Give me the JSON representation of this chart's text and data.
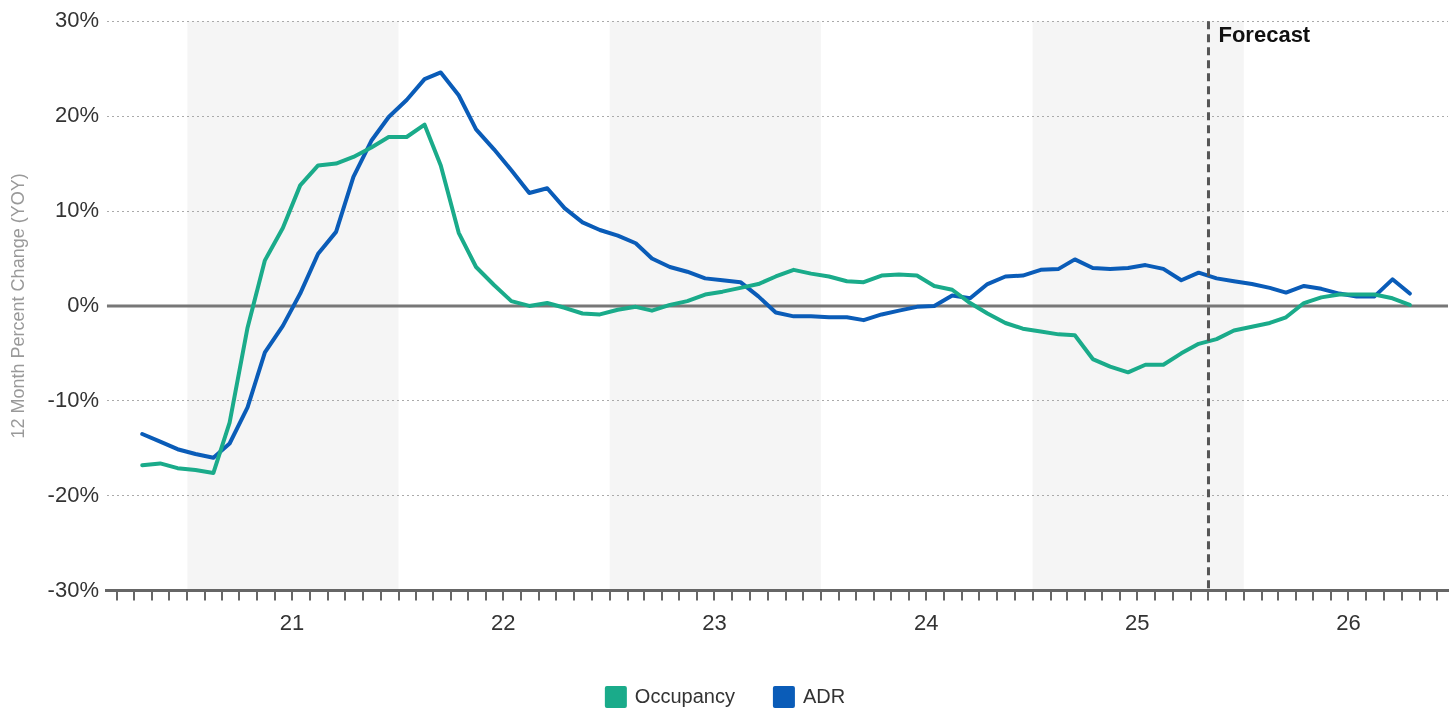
{
  "chart_data": {
    "type": "line",
    "ylabel": "12 Month Percent Change (YOY)",
    "x": [
      "2020-10-15",
      "2020-11-15",
      "2020-12-15",
      "2021-01-15",
      "2021-02-15",
      "2021-03-15",
      "2021-04-15",
      "2021-05-15",
      "2021-06-15",
      "2021-07-15",
      "2021-08-15",
      "2021-09-15",
      "2021-10-15",
      "2021-11-15",
      "2021-12-15",
      "2022-01-15",
      "2022-02-15",
      "2022-03-15",
      "2022-04-15",
      "2022-05-15",
      "2022-06-15",
      "2022-07-15",
      "2022-08-15",
      "2022-09-15",
      "2022-10-15",
      "2022-11-15",
      "2022-12-15",
      "2023-01-15",
      "2023-02-15",
      "2023-03-15",
      "2023-04-15",
      "2023-05-15",
      "2023-06-15",
      "2023-07-15",
      "2023-08-15",
      "2023-09-15",
      "2023-10-15",
      "2023-11-15",
      "2023-12-15",
      "2024-01-15",
      "2024-02-15",
      "2024-03-15",
      "2024-04-15",
      "2024-05-15",
      "2024-06-15",
      "2024-07-15",
      "2024-08-15",
      "2024-09-15",
      "2024-10-15",
      "2024-11-15",
      "2024-12-15",
      "2025-01-15",
      "2025-02-15",
      "2025-03-15",
      "2025-04-15",
      "2025-05-15",
      "2025-06-15",
      "2025-07-15",
      "2025-08-15",
      "2025-09-15",
      "2025-10-15",
      "2025-11-15",
      "2025-12-15",
      "2026-01-15",
      "2026-02-15",
      "2026-03-15",
      "2026-04-15",
      "2026-05-15",
      "2026-06-15",
      "2026-07-15",
      "2026-08-15",
      "2026-09-15",
      "2026-10-15"
    ],
    "series": [
      {
        "name": "Occupancy",
        "color": "#1aab8a",
        "values": [
          -16.8,
          -16.6,
          -17.1,
          -17.3,
          -17.6,
          -12.3,
          -2.3,
          4.8,
          8.2,
          12.7,
          14.8,
          15.0,
          15.7,
          16.7,
          17.8,
          17.8,
          19.1,
          14.8,
          7.7,
          4.1,
          2.2,
          0.5,
          0.0,
          0.3,
          -0.2,
          -0.8,
          -0.9,
          -0.4,
          -0.1,
          -0.5,
          0.1,
          0.5,
          1.2,
          1.5,
          1.9,
          2.3,
          3.1,
          3.8,
          3.4,
          3.1,
          2.6,
          2.5,
          3.2,
          3.3,
          3.2,
          2.1,
          1.7,
          0.3,
          -0.8,
          -1.8,
          -2.4,
          -2.7,
          -3.0,
          -3.1,
          -5.6,
          -6.4,
          -7.0,
          -6.2,
          -6.2,
          -5.0,
          -4.0,
          -3.5,
          -2.6,
          -2.2,
          -1.8,
          -1.2,
          0.3,
          0.9,
          1.2,
          1.2,
          1.2,
          0.8,
          0.1
        ]
      },
      {
        "name": "ADR",
        "color": "#0a5cb8",
        "values": [
          -13.5,
          -14.3,
          -15.1,
          -15.6,
          -16.0,
          -14.5,
          -10.7,
          -4.9,
          -2.1,
          1.3,
          5.5,
          7.8,
          13.6,
          17.4,
          19.9,
          21.7,
          23.9,
          24.6,
          22.2,
          18.6,
          16.5,
          14.3,
          11.9,
          12.4,
          10.3,
          8.8,
          8.0,
          7.4,
          6.6,
          5.0,
          4.1,
          3.6,
          2.9,
          2.7,
          2.5,
          1.0,
          -0.7,
          -1.1,
          -1.1,
          -1.2,
          -1.2,
          -1.5,
          -0.9,
          -0.5,
          -0.1,
          0.0,
          1.1,
          0.8,
          2.3,
          3.1,
          3.2,
          3.8,
          3.9,
          4.9,
          4.0,
          3.9,
          4.0,
          4.3,
          3.9,
          2.7,
          3.5,
          2.9,
          2.6,
          2.3,
          1.9,
          1.4,
          2.1,
          1.8,
          1.3,
          1.0,
          1.0,
          2.8,
          1.3
        ]
      }
    ],
    "xlim": [
      "2020-08-15",
      "2026-12-20"
    ],
    "xticks": [
      {
        "value": "2020-09",
        "label": null
      },
      {
        "value": "2020-10",
        "label": null
      },
      {
        "value": "2020-11",
        "label": null
      },
      {
        "value": "2020-12",
        "label": null
      },
      {
        "value": "2021-01",
        "label": null
      },
      {
        "value": "2021-02",
        "label": null
      },
      {
        "value": "2021-03",
        "label": null
      },
      {
        "value": "2021-04",
        "label": null
      },
      {
        "value": "2021-05",
        "label": null
      },
      {
        "value": "2021-06",
        "label": null
      },
      {
        "value": "2021-07",
        "label": "21"
      },
      {
        "value": "2021-08",
        "label": null
      },
      {
        "value": "2021-09",
        "label": null
      },
      {
        "value": "2021-10",
        "label": null
      },
      {
        "value": "2021-11",
        "label": null
      },
      {
        "value": "2021-12",
        "label": null
      },
      {
        "value": "2022-01",
        "label": null
      },
      {
        "value": "2022-02",
        "label": null
      },
      {
        "value": "2022-03",
        "label": null
      },
      {
        "value": "2022-04",
        "label": null
      },
      {
        "value": "2022-05",
        "label": null
      },
      {
        "value": "2022-06",
        "label": null
      },
      {
        "value": "2022-07",
        "label": "22"
      },
      {
        "value": "2022-08",
        "label": null
      },
      {
        "value": "2022-09",
        "label": null
      },
      {
        "value": "2022-10",
        "label": null
      },
      {
        "value": "2022-11",
        "label": null
      },
      {
        "value": "2022-12",
        "label": null
      },
      {
        "value": "2023-01",
        "label": null
      },
      {
        "value": "2023-02",
        "label": null
      },
      {
        "value": "2023-03",
        "label": null
      },
      {
        "value": "2023-04",
        "label": null
      },
      {
        "value": "2023-05",
        "label": null
      },
      {
        "value": "2023-06",
        "label": null
      },
      {
        "value": "2023-07",
        "label": "23"
      },
      {
        "value": "2023-08",
        "label": null
      },
      {
        "value": "2023-09",
        "label": null
      },
      {
        "value": "2023-10",
        "label": null
      },
      {
        "value": "2023-11",
        "label": null
      },
      {
        "value": "2023-12",
        "label": null
      },
      {
        "value": "2024-01",
        "label": null
      },
      {
        "value": "2024-02",
        "label": null
      },
      {
        "value": "2024-03",
        "label": null
      },
      {
        "value": "2024-04",
        "label": null
      },
      {
        "value": "2024-05",
        "label": null
      },
      {
        "value": "2024-06",
        "label": null
      },
      {
        "value": "2024-07",
        "label": "24"
      },
      {
        "value": "2024-08",
        "label": null
      },
      {
        "value": "2024-09",
        "label": null
      },
      {
        "value": "2024-10",
        "label": null
      },
      {
        "value": "2024-11",
        "label": null
      },
      {
        "value": "2024-12",
        "label": null
      },
      {
        "value": "2025-01",
        "label": null
      },
      {
        "value": "2025-02",
        "label": null
      },
      {
        "value": "2025-03",
        "label": null
      },
      {
        "value": "2025-04",
        "label": null
      },
      {
        "value": "2025-05",
        "label": null
      },
      {
        "value": "2025-06",
        "label": null
      },
      {
        "value": "2025-07",
        "label": "25"
      },
      {
        "value": "2025-08",
        "label": null
      },
      {
        "value": "2025-09",
        "label": null
      },
      {
        "value": "2025-10",
        "label": null
      },
      {
        "value": "2025-11",
        "label": null
      },
      {
        "value": "2025-12",
        "label": null
      },
      {
        "value": "2026-01",
        "label": null
      },
      {
        "value": "2026-02",
        "label": null
      },
      {
        "value": "2026-03",
        "label": null
      },
      {
        "value": "2026-04",
        "label": null
      },
      {
        "value": "2026-05",
        "label": null
      },
      {
        "value": "2026-06",
        "label": null
      },
      {
        "value": "2026-07",
        "label": "26"
      },
      {
        "value": "2026-08",
        "label": null
      },
      {
        "value": "2026-09",
        "label": null
      },
      {
        "value": "2026-10",
        "label": null
      },
      {
        "value": "2026-11",
        "label": null
      },
      {
        "value": "2026-12",
        "label": null
      }
    ],
    "ylim": [
      -30,
      30
    ],
    "yticks": [
      {
        "value": -30,
        "label": "-30%"
      },
      {
        "value": -20,
        "label": "-20%"
      },
      {
        "value": -10,
        "label": "-10%"
      },
      {
        "value": 0,
        "label": "0%"
      },
      {
        "value": 10,
        "label": "10%"
      },
      {
        "value": 20,
        "label": "20%"
      },
      {
        "value": 30,
        "label": "30%"
      }
    ],
    "bands": [
      {
        "axis": "x",
        "from": "2021-01",
        "to": "2022-01",
        "color": "#f5f5f5"
      },
      {
        "axis": "x",
        "from": "2023-01",
        "to": "2024-01",
        "color": "#f5f5f5"
      },
      {
        "axis": "x",
        "from": "2025-01",
        "to": "2026-01",
        "color": "#f5f5f5"
      }
    ],
    "ref_lines": [
      {
        "axis": "y",
        "value": 0,
        "color": "#777777",
        "line_style": "solid"
      },
      {
        "axis": "x",
        "value": "2025-11",
        "label": "Forecast",
        "color": "#555555",
        "line_style": "dashed"
      }
    ],
    "grid": "y",
    "legend": "bottom",
    "marker": "none",
    "line_style": "solid"
  }
}
